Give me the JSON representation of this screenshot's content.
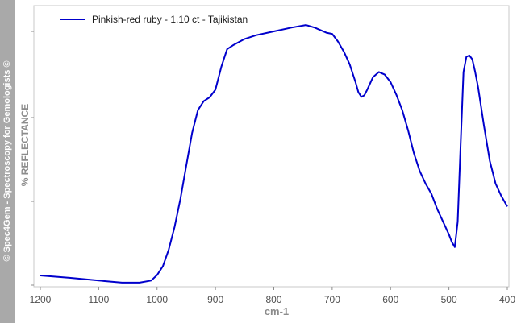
{
  "watermark": "© Spec4Gem - Spectroscopy for Gemologists ©",
  "colors": {
    "line": "#0000cc",
    "frame": "#c8c8c8",
    "banner": "#a9a9a9"
  },
  "chart_data": {
    "type": "line",
    "xlabel": "cm-1",
    "ylabel": "% REFLECTANCE",
    "xlim": [
      1200,
      400
    ],
    "x_reversed": true,
    "ylim": [
      0,
      100
    ],
    "y_tick_labels_shown": false,
    "y_ticks": [
      0,
      33,
      66,
      100
    ],
    "x_ticks": [
      1200,
      1100,
      1000,
      900,
      800,
      700,
      600,
      500,
      400
    ],
    "grid": false,
    "legend": "top-left",
    "series": [
      {
        "name": "Pinkish-red ruby - 1.10 ct - Tajikistan",
        "color": "#0000cc",
        "x": [
          1200,
          1150,
          1100,
          1060,
          1030,
          1010,
          1000,
          990,
          980,
          970,
          960,
          950,
          940,
          930,
          920,
          910,
          900,
          890,
          880,
          870,
          850,
          830,
          800,
          770,
          745,
          730,
          720,
          710,
          700,
          690,
          680,
          670,
          660,
          655,
          650,
          645,
          640,
          630,
          620,
          610,
          600,
          590,
          580,
          570,
          560,
          550,
          540,
          530,
          520,
          510,
          500,
          495,
          490,
          485,
          480,
          475,
          470,
          465,
          460,
          455,
          450,
          440,
          430,
          420,
          410,
          400
        ],
        "y": [
          3.8,
          2.9,
          1.8,
          1.0,
          1.0,
          1.8,
          4.0,
          7.5,
          14,
          23,
          34,
          47,
          60,
          69,
          72.5,
          74,
          77,
          86,
          93,
          94.5,
          97,
          98.5,
          100,
          101.5,
          102.5,
          101.5,
          100.5,
          99.5,
          99,
          96,
          92,
          87,
          80,
          76,
          74.2,
          74.8,
          77,
          82,
          84,
          83,
          80,
          75,
          69,
          61,
          52,
          45,
          40,
          36,
          30,
          25,
          20,
          17,
          15,
          25,
          55,
          84,
          90,
          90.5,
          89,
          84,
          78,
          63,
          49,
          40,
          35,
          31
        ]
      }
    ]
  }
}
